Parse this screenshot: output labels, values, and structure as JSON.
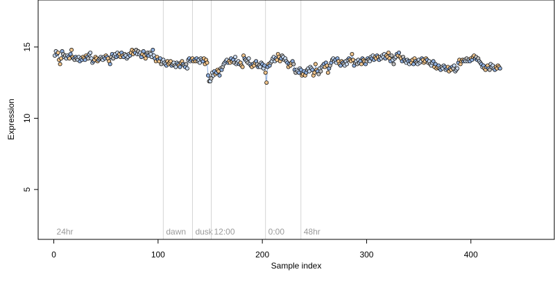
{
  "chart_data": {
    "type": "scatter",
    "title": "",
    "xlabel": "Sample index",
    "ylabel": "Expression",
    "xlim": [
      -15,
      480
    ],
    "ylim": [
      1.5,
      18.3
    ],
    "x_ticks": [
      0,
      100,
      200,
      300,
      400
    ],
    "y_ticks": [
      5,
      10,
      15
    ],
    "grid": false,
    "legend": "none",
    "colors": {
      "point_stroke": "#111111",
      "point_fill_light": "#c9daf0",
      "point_fill_blue": "#8fb0e0",
      "point_fill_orange": "#f0c48c",
      "point_fill_gray": "#bdbdbd",
      "connecting_line": "#8fb0e0",
      "phase_divider": "#d4d4d4",
      "phase_label": "#9a9a9a"
    },
    "phase_markers": [
      {
        "label": "24hr",
        "x": 0
      },
      {
        "label": "dawn",
        "x": 105
      },
      {
        "label": "dusk",
        "x": 133
      },
      {
        "label": "12:00",
        "x": 151
      },
      {
        "label": "0:00",
        "x": 203
      },
      {
        "label": "48hr",
        "x": 237
      }
    ],
    "series": [
      {
        "x_start": 1,
        "x_step": 1,
        "values": [
          14.4,
          14.7,
          14.5,
          14.6,
          14.1,
          13.8,
          14.2,
          14.7,
          14.5,
          14.3,
          14.4,
          14.2,
          14.4,
          14.3,
          14.2,
          14.5,
          14.8,
          14.3,
          14.2,
          14.1,
          14.3,
          14.2,
          14.1,
          14.3,
          14.0,
          14.2,
          14.1,
          14.3,
          14.2,
          14.1,
          14.4,
          14.3,
          14.2,
          14.5,
          14.6,
          14.2,
          13.9,
          14.0,
          14.1,
          14.3,
          14.2,
          14.0,
          14.1,
          14.2,
          14.3,
          14.2,
          14.1,
          14.3,
          14.2,
          14.4,
          14.3,
          14.2,
          14.0,
          13.8,
          14.3,
          14.5,
          14.2,
          14.4,
          14.5,
          14.3,
          14.6,
          14.4,
          14.5,
          14.3,
          14.6,
          14.4,
          14.3,
          14.5,
          14.4,
          14.2,
          14.3,
          14.5,
          14.4,
          14.6,
          14.8,
          14.5,
          14.7,
          14.6,
          14.8,
          14.5,
          14.7,
          14.5,
          14.6,
          14.3,
          14.5,
          14.7,
          14.4,
          14.2,
          14.5,
          14.6,
          14.4,
          14.6,
          14.5,
          14.3,
          14.8,
          14.4,
          14.2,
          14.0,
          14.3,
          14.1,
          14.0,
          14.2,
          13.8,
          14.0,
          14.1,
          13.9,
          13.8,
          13.7,
          14.0,
          13.8,
          13.9,
          14.0,
          13.7,
          13.8,
          13.9,
          13.7,
          13.6,
          13.9,
          13.8,
          13.7,
          13.6,
          13.9,
          14.0,
          13.8,
          13.7,
          13.6,
          13.8,
          13.5,
          14.1,
          14.2,
          14.0,
          14.1,
          14.2,
          14.0,
          14.1,
          14.0,
          14.2,
          14.0,
          14.1,
          13.9,
          14.2,
          14.1,
          14.0,
          14.2,
          13.8,
          14.1,
          13.9,
          13.0,
          12.6,
          12.6,
          12.8,
          13.2,
          13.0,
          13.3,
          13.1,
          13.2,
          13.4,
          13.3,
          13.0,
          13.5,
          13.4,
          13.6,
          13.8,
          13.9,
          14.0,
          14.1,
          13.9,
          14.0,
          13.9,
          14.2,
          14.0,
          14.1,
          13.9,
          14.3,
          13.8,
          13.9,
          14.0,
          13.8,
          13.9,
          13.7,
          13.6,
          14.4,
          14.2,
          14.1,
          14.0,
          13.9,
          14.2,
          13.8,
          13.7,
          13.6,
          13.8,
          13.7,
          13.9,
          14.0,
          13.8,
          13.6,
          13.7,
          13.6,
          13.9,
          13.8,
          13.5,
          13.7,
          13.2,
          12.5,
          13.6,
          13.8,
          13.7,
          13.9,
          14.0,
          14.2,
          14.3,
          14.0,
          14.2,
          14.1,
          14.5,
          14.3,
          14.0,
          14.2,
          14.4,
          14.3,
          14.1,
          14.2,
          14.0,
          13.9,
          13.6,
          13.8,
          13.7,
          13.9,
          14.0,
          13.8,
          13.4,
          13.2,
          13.4,
          13.3,
          13.2,
          13.5,
          13.4,
          13.0,
          13.1,
          13.3,
          13.0,
          13.2,
          13.4,
          13.5,
          13.3,
          13.6,
          13.5,
          13.4,
          13.0,
          13.2,
          13.8,
          13.4,
          13.3,
          13.1,
          13.5,
          13.3,
          13.6,
          13.7,
          13.8,
          13.6,
          13.9,
          13.7,
          13.2,
          13.5,
          13.7,
          13.9,
          14.1,
          14.2,
          14.0,
          14.1,
          13.9,
          14.2,
          14.0,
          13.8,
          13.7,
          14.0,
          13.9,
          13.8,
          13.7,
          14.0,
          13.8,
          14.1,
          14.2,
          14.1,
          14.0,
          14.5,
          14.1,
          13.7,
          13.9,
          14.0,
          13.8,
          14.1,
          13.9,
          14.0,
          13.8,
          14.2,
          14.1,
          14.0,
          13.8,
          14.0,
          14.2,
          14.1,
          14.0,
          14.3,
          14.2,
          14.4,
          14.1,
          14.3,
          14.2,
          14.4,
          14.3,
          14.1,
          14.3,
          14.2,
          14.4,
          14.3,
          14.5,
          14.2,
          14.4,
          14.3,
          14.6,
          14.2,
          14.0,
          14.4,
          14.1,
          13.8,
          14.2,
          14.3,
          14.5,
          14.4,
          14.6,
          14.3,
          14.2,
          14.0,
          14.3,
          14.1,
          14.0,
          13.9,
          14.1,
          14.0,
          13.8,
          14.0,
          13.9,
          14.1,
          13.8,
          14.2,
          14.0,
          13.9,
          13.8,
          14.1,
          13.9,
          14.0,
          14.2,
          14.1,
          13.9,
          14.0,
          14.2,
          14.1,
          13.9,
          14.0,
          13.8,
          13.7,
          13.9,
          14.0,
          13.6,
          13.8,
          13.5,
          13.6,
          13.7,
          13.5,
          13.4,
          13.6,
          13.5,
          13.7,
          13.6,
          13.4,
          13.5,
          13.6,
          13.3,
          13.5,
          13.4,
          13.6,
          13.5,
          13.7,
          13.3,
          13.4,
          13.5,
          13.9,
          14.1,
          13.8,
          14.0,
          14.1,
          14.0,
          14.1,
          14.0,
          14.2,
          14.0,
          14.1,
          14.0,
          14.2,
          14.1,
          14.3,
          14.4,
          14.2,
          14.3,
          14.1,
          14.2,
          14.0,
          13.9,
          13.8,
          13.6,
          13.7,
          13.5,
          13.4,
          13.6,
          13.7,
          13.5,
          13.4,
          13.8,
          13.6,
          13.7,
          13.5,
          13.4,
          13.6,
          13.5,
          13.7,
          13.6,
          13.5
        ]
      }
    ]
  }
}
